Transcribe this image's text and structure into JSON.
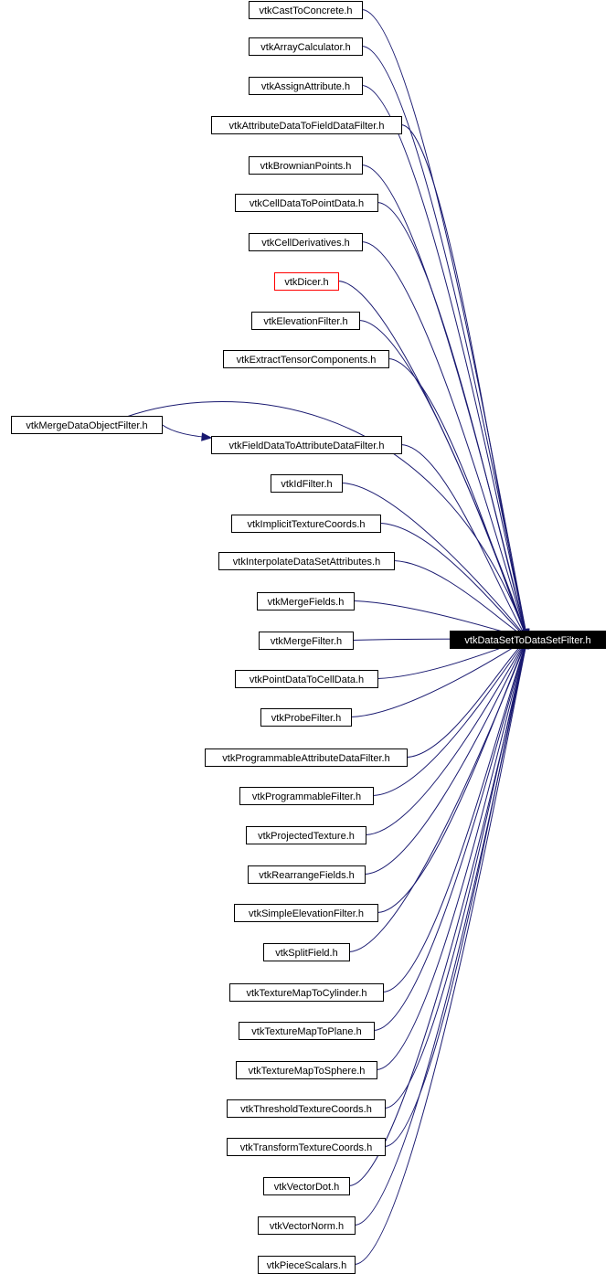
{
  "target": {
    "label": "vtkDataSetToDataSetFilter.h"
  },
  "nodes": [
    {
      "label": "vtkCastToConcrete.h"
    },
    {
      "label": "vtkArrayCalculator.h"
    },
    {
      "label": "vtkAssignAttribute.h"
    },
    {
      "label": "vtkAttributeDataToFieldDataFilter.h"
    },
    {
      "label": "vtkBrownianPoints.h"
    },
    {
      "label": "vtkCellDataToPointData.h"
    },
    {
      "label": "vtkCellDerivatives.h"
    },
    {
      "label": "vtkDicer.h",
      "highlight": "red"
    },
    {
      "label": "vtkElevationFilter.h"
    },
    {
      "label": "vtkExtractTensorComponents.h"
    },
    {
      "label": "vtkMergeDataObjectFilter.h"
    },
    {
      "label": "vtkFieldDataToAttributeDataFilter.h"
    },
    {
      "label": "vtkIdFilter.h"
    },
    {
      "label": "vtkImplicitTextureCoords.h"
    },
    {
      "label": "vtkInterpolateDataSetAttributes.h"
    },
    {
      "label": "vtkMergeFields.h"
    },
    {
      "label": "vtkMergeFilter.h"
    },
    {
      "label": "vtkPointDataToCellData.h"
    },
    {
      "label": "vtkProbeFilter.h"
    },
    {
      "label": "vtkProgrammableAttributeDataFilter.h"
    },
    {
      "label": "vtkProgrammableFilter.h"
    },
    {
      "label": "vtkProjectedTexture.h"
    },
    {
      "label": "vtkRearrangeFields.h"
    },
    {
      "label": "vtkSimpleElevationFilter.h"
    },
    {
      "label": "vtkSplitField.h"
    },
    {
      "label": "vtkTextureMapToCylinder.h"
    },
    {
      "label": "vtkTextureMapToPlane.h"
    },
    {
      "label": "vtkTextureMapToSphere.h"
    },
    {
      "label": "vtkThresholdTextureCoords.h"
    },
    {
      "label": "vtkTransformTextureCoords.h"
    },
    {
      "label": "vtkVectorDot.h"
    },
    {
      "label": "vtkVectorNorm.h"
    },
    {
      "label": "vtkPieceScalars.h"
    }
  ],
  "edges": [
    {
      "from": "vtkCastToConcrete.h",
      "to": "vtkDataSetToDataSetFilter.h"
    },
    {
      "from": "vtkArrayCalculator.h",
      "to": "vtkDataSetToDataSetFilter.h"
    },
    {
      "from": "vtkAssignAttribute.h",
      "to": "vtkDataSetToDataSetFilter.h"
    },
    {
      "from": "vtkAttributeDataToFieldDataFilter.h",
      "to": "vtkDataSetToDataSetFilter.h"
    },
    {
      "from": "vtkBrownianPoints.h",
      "to": "vtkDataSetToDataSetFilter.h"
    },
    {
      "from": "vtkCellDataToPointData.h",
      "to": "vtkDataSetToDataSetFilter.h"
    },
    {
      "from": "vtkCellDerivatives.h",
      "to": "vtkDataSetToDataSetFilter.h"
    },
    {
      "from": "vtkDicer.h",
      "to": "vtkDataSetToDataSetFilter.h"
    },
    {
      "from": "vtkElevationFilter.h",
      "to": "vtkDataSetToDataSetFilter.h"
    },
    {
      "from": "vtkExtractTensorComponents.h",
      "to": "vtkDataSetToDataSetFilter.h"
    },
    {
      "from": "vtkMergeDataObjectFilter.h",
      "to": "vtkDataSetToDataSetFilter.h"
    },
    {
      "from": "vtkMergeDataObjectFilter.h",
      "to": "vtkFieldDataToAttributeDataFilter.h"
    },
    {
      "from": "vtkFieldDataToAttributeDataFilter.h",
      "to": "vtkDataSetToDataSetFilter.h"
    },
    {
      "from": "vtkIdFilter.h",
      "to": "vtkDataSetToDataSetFilter.h"
    },
    {
      "from": "vtkImplicitTextureCoords.h",
      "to": "vtkDataSetToDataSetFilter.h"
    },
    {
      "from": "vtkInterpolateDataSetAttributes.h",
      "to": "vtkDataSetToDataSetFilter.h"
    },
    {
      "from": "vtkMergeFields.h",
      "to": "vtkDataSetToDataSetFilter.h"
    },
    {
      "from": "vtkMergeFilter.h",
      "to": "vtkDataSetToDataSetFilter.h"
    },
    {
      "from": "vtkPointDataToCellData.h",
      "to": "vtkDataSetToDataSetFilter.h"
    },
    {
      "from": "vtkProbeFilter.h",
      "to": "vtkDataSetToDataSetFilter.h"
    },
    {
      "from": "vtkProgrammableAttributeDataFilter.h",
      "to": "vtkDataSetToDataSetFilter.h"
    },
    {
      "from": "vtkProgrammableFilter.h",
      "to": "vtkDataSetToDataSetFilter.h"
    },
    {
      "from": "vtkProjectedTexture.h",
      "to": "vtkDataSetToDataSetFilter.h"
    },
    {
      "from": "vtkRearrangeFields.h",
      "to": "vtkDataSetToDataSetFilter.h"
    },
    {
      "from": "vtkSimpleElevationFilter.h",
      "to": "vtkDataSetToDataSetFilter.h"
    },
    {
      "from": "vtkSplitField.h",
      "to": "vtkDataSetToDataSetFilter.h"
    },
    {
      "from": "vtkTextureMapToCylinder.h",
      "to": "vtkDataSetToDataSetFilter.h"
    },
    {
      "from": "vtkTextureMapToPlane.h",
      "to": "vtkDataSetToDataSetFilter.h"
    },
    {
      "from": "vtkTextureMapToSphere.h",
      "to": "vtkDataSetToDataSetFilter.h"
    },
    {
      "from": "vtkThresholdTextureCoords.h",
      "to": "vtkDataSetToDataSetFilter.h"
    },
    {
      "from": "vtkTransformTextureCoords.h",
      "to": "vtkDataSetToDataSetFilter.h"
    },
    {
      "from": "vtkVectorDot.h",
      "to": "vtkDataSetToDataSetFilter.h"
    },
    {
      "from": "vtkVectorNorm.h",
      "to": "vtkDataSetToDataSetFilter.h"
    },
    {
      "from": "vtkPieceScalars.h",
      "to": "vtkDataSetToDataSetFilter.h"
    }
  ],
  "colors": {
    "edge": "#191970",
    "highlight": "#ff0000",
    "target_fill": "#000000",
    "target_text": "#ffffff"
  }
}
